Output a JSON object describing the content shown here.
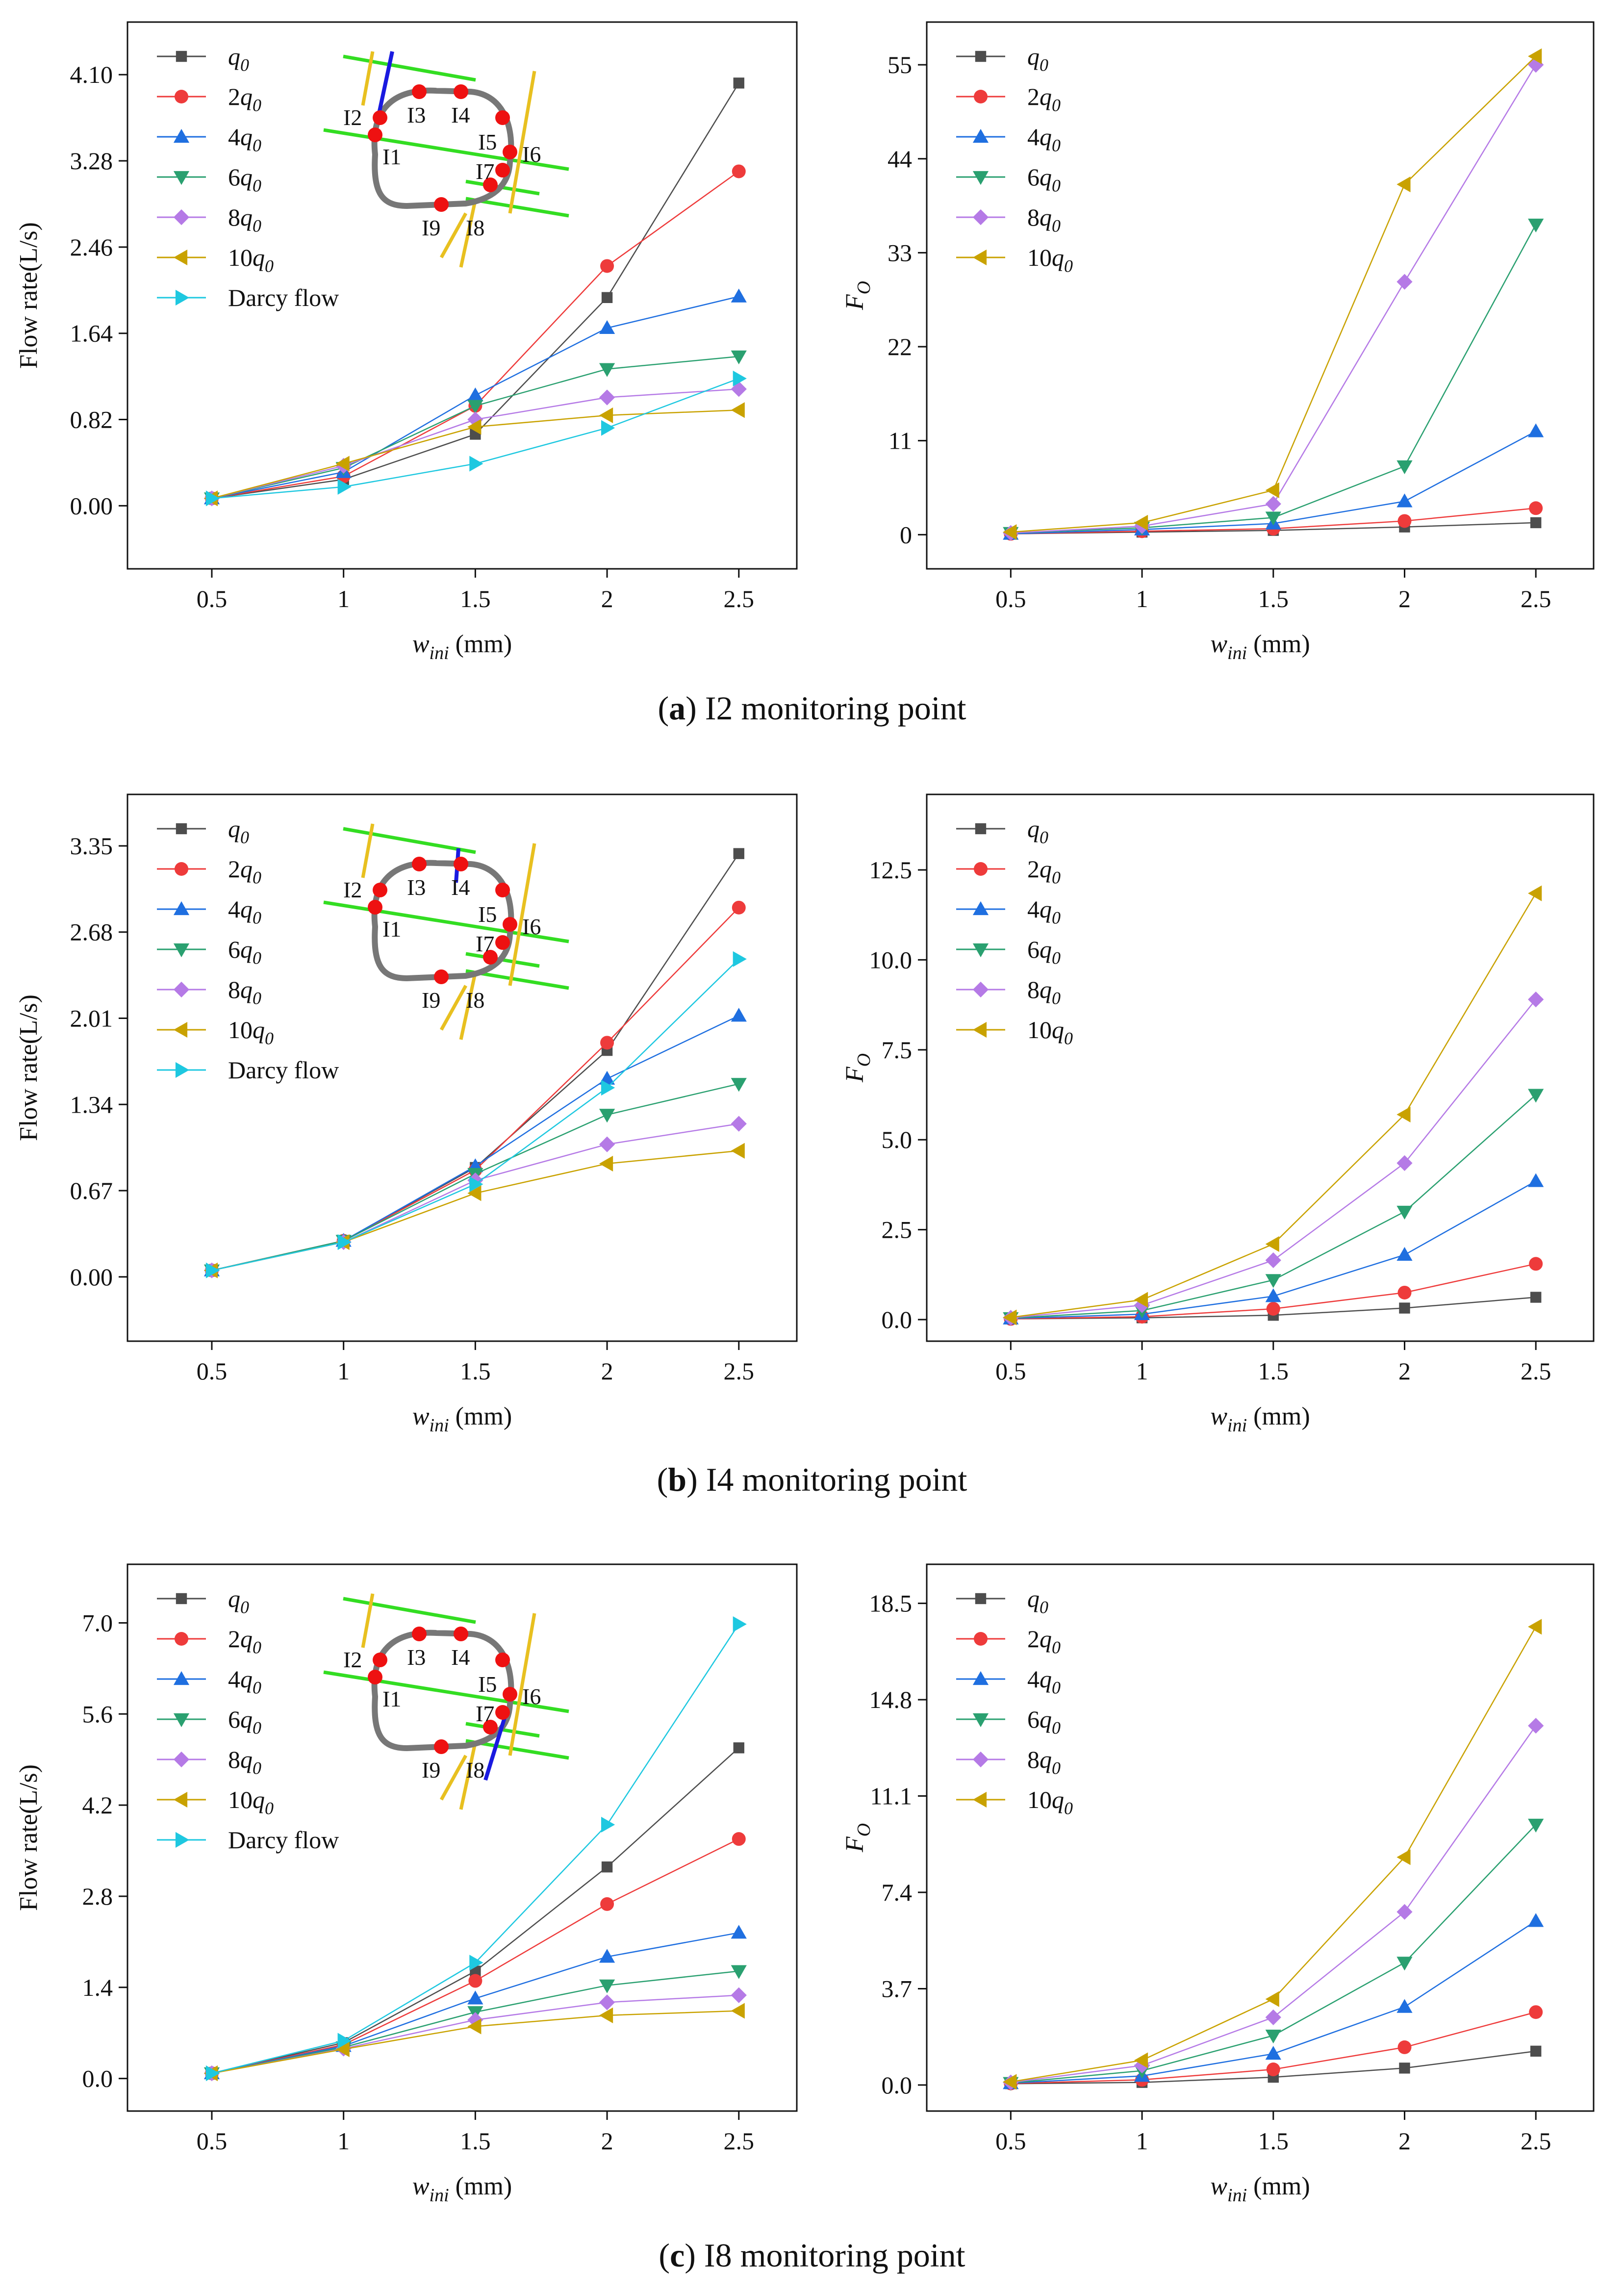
{
  "colors": {
    "q0": "#4d4d4d",
    "2q0": "#ee3b3b",
    "4q0": "#1f6fe0",
    "6q0": "#2aa070",
    "8q0": "#b57ae6",
    "10q0": "#c9a200",
    "Darcy flow": "#1ec8e0"
  },
  "series_labels": {
    "q0": "q0",
    "2q0": "2q0",
    "4q0": "4q0",
    "6q0": "6q0",
    "8q0": "8q0",
    "10q0": "10q0",
    "darcy": "Darcy flow"
  },
  "captions": [
    {
      "letter": "a",
      "text": "I2 monitoring point"
    },
    {
      "letter": "b",
      "text": "I4 monitoring point"
    },
    {
      "letter": "c",
      "text": "I8 monitoring point"
    }
  ],
  "inset_labels": [
    "I1",
    "I2",
    "I3",
    "I4",
    "I5",
    "I6",
    "I7",
    "I8",
    "I9"
  ],
  "chart_data": [
    {
      "type": "line",
      "panel": "a-left",
      "xlabel": "wini (mm)",
      "ylabel": "Flow rate(L/s)",
      "x": [
        0.5,
        1,
        1.5,
        2,
        2.5
      ],
      "xticks": [
        "0.5",
        "1",
        "1.5",
        "2",
        "2.5"
      ],
      "ylim": [
        -0.6,
        4.6
      ],
      "yticks": [
        "0.00",
        "0.82",
        "1.64",
        "2.46",
        "3.28",
        "4.10"
      ],
      "highlight": "I2",
      "series": [
        {
          "name": "q0",
          "values": [
            0.07,
            0.25,
            0.68,
            1.98,
            4.02
          ]
        },
        {
          "name": "2q0",
          "values": [
            0.07,
            0.28,
            0.95,
            2.28,
            3.18
          ]
        },
        {
          "name": "4q0",
          "values": [
            0.07,
            0.32,
            1.05,
            1.69,
            1.99
          ]
        },
        {
          "name": "6q0",
          "values": [
            0.07,
            0.36,
            0.95,
            1.3,
            1.42
          ]
        },
        {
          "name": "8q0",
          "values": [
            0.07,
            0.38,
            0.82,
            1.03,
            1.11
          ]
        },
        {
          "name": "10q0",
          "values": [
            0.07,
            0.4,
            0.75,
            0.86,
            0.91
          ]
        },
        {
          "name": "Darcy flow",
          "values": [
            0.07,
            0.18,
            0.4,
            0.74,
            1.21
          ]
        }
      ]
    },
    {
      "type": "line",
      "panel": "a-right",
      "xlabel": "wini (mm)",
      "ylabel": "FO",
      "x": [
        0.5,
        1,
        1.5,
        2,
        2.5
      ],
      "xticks": [
        "0.5",
        "1",
        "1.5",
        "2",
        "2.5"
      ],
      "ylim": [
        -4.0,
        60.0
      ],
      "yticks": [
        "0",
        "11",
        "22",
        "33",
        "44",
        "55"
      ],
      "series": [
        {
          "name": "q0",
          "values": [
            0.1,
            0.3,
            0.5,
            0.9,
            1.4
          ]
        },
        {
          "name": "2q0",
          "values": [
            0.1,
            0.4,
            0.7,
            1.6,
            3.1
          ]
        },
        {
          "name": "4q0",
          "values": [
            0.1,
            0.6,
            1.3,
            3.9,
            12.1
          ]
        },
        {
          "name": "6q0",
          "values": [
            0.2,
            0.8,
            2.0,
            8.0,
            36.3
          ]
        },
        {
          "name": "8q0",
          "values": [
            0.2,
            1.0,
            3.6,
            29.6,
            55.0
          ]
        },
        {
          "name": "10q0",
          "values": [
            0.3,
            1.4,
            5.2,
            41.0,
            56.0
          ]
        }
      ]
    },
    {
      "type": "line",
      "panel": "b-left",
      "xlabel": "wini (mm)",
      "ylabel": "Flow rate(L/s)",
      "x": [
        0.5,
        1,
        1.5,
        2,
        2.5
      ],
      "xticks": [
        "0.5",
        "1",
        "1.5",
        "2",
        "2.5"
      ],
      "ylim": [
        -0.5,
        3.75
      ],
      "yticks": [
        "0.00",
        "0.67",
        "1.34",
        "2.01",
        "2.68",
        "3.35"
      ],
      "highlight": "I4",
      "series": [
        {
          "name": "q0",
          "values": [
            0.05,
            0.28,
            0.85,
            1.76,
            3.29
          ]
        },
        {
          "name": "2q0",
          "values": [
            0.05,
            0.28,
            0.83,
            1.82,
            2.87
          ]
        },
        {
          "name": "4q0",
          "values": [
            0.05,
            0.28,
            0.86,
            1.54,
            2.03
          ]
        },
        {
          "name": "6q0",
          "values": [
            0.05,
            0.28,
            0.8,
            1.26,
            1.5
          ]
        },
        {
          "name": "8q0",
          "values": [
            0.05,
            0.27,
            0.75,
            1.03,
            1.19
          ]
        },
        {
          "name": "10q0",
          "values": [
            0.05,
            0.27,
            0.65,
            0.88,
            0.98
          ]
        },
        {
          "name": "Darcy flow",
          "values": [
            0.05,
            0.27,
            0.72,
            1.47,
            2.47
          ]
        }
      ]
    },
    {
      "type": "line",
      "panel": "b-right",
      "xlabel": "wini (mm)",
      "ylabel": "FO",
      "x": [
        0.5,
        1,
        1.5,
        2,
        2.5
      ],
      "xticks": [
        "0.5",
        "1",
        "1.5",
        "2",
        "2.5"
      ],
      "ylim": [
        -0.6,
        14.6
      ],
      "yticks": [
        "0.0",
        "2.5",
        "5.0",
        "7.5",
        "10.0",
        "12.5"
      ],
      "series": [
        {
          "name": "q0",
          "values": [
            0.02,
            0.05,
            0.12,
            0.32,
            0.62
          ]
        },
        {
          "name": "2q0",
          "values": [
            0.02,
            0.08,
            0.3,
            0.75,
            1.55
          ]
        },
        {
          "name": "4q0",
          "values": [
            0.03,
            0.15,
            0.65,
            1.8,
            3.85
          ]
        },
        {
          "name": "6q0",
          "values": [
            0.04,
            0.25,
            1.1,
            3.0,
            6.25
          ]
        },
        {
          "name": "8q0",
          "values": [
            0.05,
            0.4,
            1.65,
            4.35,
            8.9
          ]
        },
        {
          "name": "10q0",
          "values": [
            0.06,
            0.55,
            2.1,
            5.7,
            11.85
          ]
        }
      ]
    },
    {
      "type": "line",
      "panel": "c-left",
      "xlabel": "wini (mm)",
      "ylabel": "Flow rate(L/s)",
      "x": [
        0.5,
        1,
        1.5,
        2,
        2.5
      ],
      "xticks": [
        "0.5",
        "1",
        "1.5",
        "2",
        "2.5"
      ],
      "ylim": [
        -0.5,
        7.9
      ],
      "yticks": [
        "0.0",
        "1.4",
        "2.8",
        "4.2",
        "5.6",
        "7.0"
      ],
      "highlight": "I8",
      "series": [
        {
          "name": "q0",
          "values": [
            0.08,
            0.55,
            1.65,
            3.25,
            5.08
          ]
        },
        {
          "name": "2q0",
          "values": [
            0.08,
            0.52,
            1.5,
            2.68,
            3.68
          ]
        },
        {
          "name": "4q0",
          "values": [
            0.08,
            0.5,
            1.23,
            1.87,
            2.24
          ]
        },
        {
          "name": "6q0",
          "values": [
            0.08,
            0.48,
            1.02,
            1.43,
            1.65
          ]
        },
        {
          "name": "8q0",
          "values": [
            0.08,
            0.46,
            0.9,
            1.17,
            1.28
          ]
        },
        {
          "name": "10q0",
          "values": [
            0.08,
            0.45,
            0.8,
            0.97,
            1.04
          ]
        },
        {
          "name": "Darcy flow",
          "values": [
            0.08,
            0.58,
            1.78,
            3.9,
            6.98
          ]
        }
      ]
    },
    {
      "type": "line",
      "panel": "c-right",
      "xlabel": "wini (mm)",
      "ylabel": "FO",
      "x": [
        0.5,
        1,
        1.5,
        2,
        2.5
      ],
      "xticks": [
        "0.5",
        "1",
        "1.5",
        "2",
        "2.5"
      ],
      "ylim": [
        -1.0,
        20.0
      ],
      "yticks": [
        "0.0",
        "3.7",
        "7.4",
        "11.1",
        "14.8",
        "18.5"
      ],
      "series": [
        {
          "name": "q0",
          "values": [
            0.05,
            0.1,
            0.3,
            0.65,
            1.3
          ]
        },
        {
          "name": "2q0",
          "values": [
            0.06,
            0.2,
            0.6,
            1.45,
            2.8
          ]
        },
        {
          "name": "4q0",
          "values": [
            0.07,
            0.35,
            1.2,
            3.0,
            6.3
          ]
        },
        {
          "name": "6q0",
          "values": [
            0.08,
            0.55,
            1.9,
            4.7,
            10.0
          ]
        },
        {
          "name": "8q0",
          "values": [
            0.1,
            0.75,
            2.6,
            6.65,
            13.8
          ]
        },
        {
          "name": "10q0",
          "values": [
            0.12,
            0.95,
            3.3,
            8.75,
            17.6
          ]
        }
      ]
    }
  ]
}
